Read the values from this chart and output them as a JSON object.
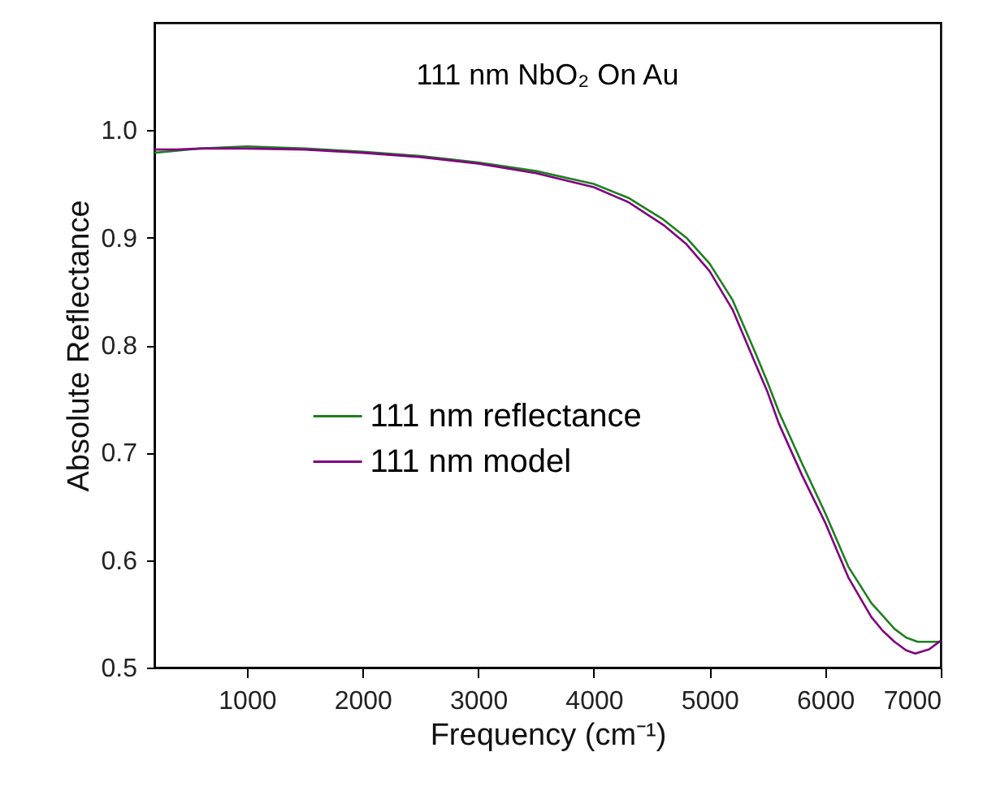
{
  "chart_data": {
    "type": "line",
    "xlabel": "Frequency (cm⁻¹)",
    "ylabel": "Absolute Reflectance",
    "annotations": [
      "111 nm NbO₂ On Au"
    ],
    "xlim": [
      200,
      7000
    ],
    "xticks": [
      1000,
      2000,
      3000,
      4000,
      5000,
      6000,
      7000
    ],
    "ylim": [
      0.5,
      1.1
    ],
    "yticks": [
      0.5,
      0.6,
      0.7,
      0.8,
      0.9,
      {
        "value": 1.0,
        "label": "1.0"
      }
    ],
    "legend": "left",
    "grid": false,
    "marker": "none",
    "line_style": "solid",
    "series": [
      {
        "name": "111 nm reflectance",
        "color": "#1f7f1f",
        "x": [
          200,
          400,
          600,
          800,
          1000,
          1500,
          2000,
          2500,
          3000,
          3500,
          4000,
          4300,
          4600,
          4800,
          5000,
          5200,
          5400,
          5500,
          5600,
          5800,
          6000,
          6200,
          6400,
          6500,
          6600,
          6700,
          6800,
          6900,
          7000
        ],
        "values": [
          0.979,
          0.981,
          0.983,
          0.984,
          0.985,
          0.983,
          0.98,
          0.976,
          0.97,
          0.962,
          0.95,
          0.937,
          0.917,
          0.9,
          0.876,
          0.842,
          0.792,
          0.766,
          0.738,
          0.69,
          0.644,
          0.594,
          0.56,
          0.548,
          0.536,
          0.528,
          0.524,
          0.524,
          0.524
        ]
      },
      {
        "name": "111 nm model",
        "color": "#800080",
        "x": [
          200,
          400,
          600,
          800,
          1000,
          1500,
          2000,
          2500,
          3000,
          3500,
          4000,
          4300,
          4600,
          4800,
          5000,
          5200,
          5400,
          5500,
          5600,
          5800,
          6000,
          6200,
          6400,
          6500,
          6600,
          6700,
          6780,
          6900,
          7000
        ],
        "values": [
          0.982,
          0.982,
          0.983,
          0.983,
          0.983,
          0.982,
          0.979,
          0.975,
          0.969,
          0.96,
          0.947,
          0.933,
          0.912,
          0.894,
          0.869,
          0.833,
          0.782,
          0.757,
          0.727,
          0.679,
          0.635,
          0.584,
          0.547,
          0.534,
          0.524,
          0.516,
          0.513,
          0.517,
          0.525
        ]
      }
    ]
  }
}
